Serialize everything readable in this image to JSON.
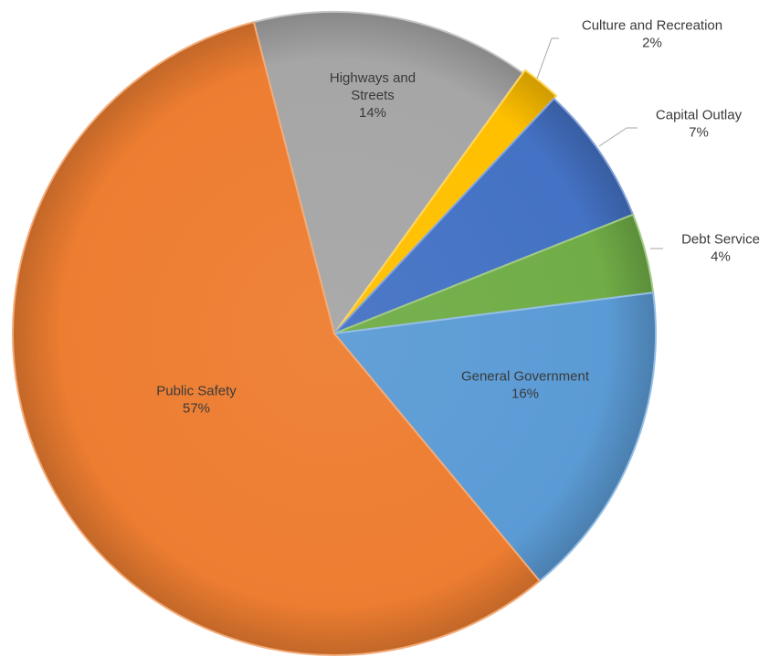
{
  "chart_data": {
    "type": "pie",
    "title": "",
    "unit": "%",
    "slices": [
      {
        "name": "Highways and Streets",
        "label_lines": [
          "Highways and",
          "Streets"
        ],
        "value": 14,
        "value_label": "14%",
        "color": "#a6a6a6"
      },
      {
        "name": "Culture and Recreation",
        "label_lines": [
          "Culture and Recreation"
        ],
        "value": 2,
        "value_label": "2%",
        "color": "#ffc000"
      },
      {
        "name": "Capital Outlay",
        "label_lines": [
          "Capital Outlay"
        ],
        "value": 7,
        "value_label": "7%",
        "color": "#4472c4"
      },
      {
        "name": "Debt Service",
        "label_lines": [
          "Debt Service"
        ],
        "value": 4,
        "value_label": "4%",
        "color": "#70ad47"
      },
      {
        "name": "General Government",
        "label_lines": [
          "General Government"
        ],
        "value": 16,
        "value_label": "16%",
        "color": "#5b9bd5"
      },
      {
        "name": "Public Safety",
        "label_lines": [
          "Public Safety"
        ],
        "value": 57,
        "value_label": "57%",
        "color": "#ed7d31"
      }
    ],
    "legend": "none",
    "style": "3d-shaded"
  }
}
